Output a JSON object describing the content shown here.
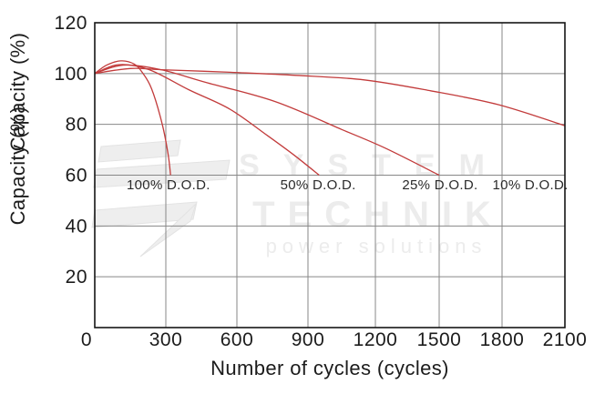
{
  "chart_data": {
    "type": "line",
    "title": "",
    "xlabel": "Number of cycles (cycles)",
    "ylabel": "Capacity (%)",
    "ylabel_rendered_twice": true,
    "xlim": [
      0,
      2100
    ],
    "ylim": [
      0,
      120
    ],
    "x_ticks": [
      0,
      300,
      600,
      900,
      1200,
      1500,
      1800,
      2100
    ],
    "y_ticks": [
      20,
      40,
      60,
      80,
      100,
      120
    ],
    "grid": true,
    "legend_position": "inline-annotations",
    "series": [
      {
        "name": "100% D.O.D.",
        "points": [
          [
            0,
            100
          ],
          [
            50,
            103.3
          ],
          [
            110,
            105
          ],
          [
            165,
            103.8
          ],
          [
            200,
            100.5
          ],
          [
            240,
            94
          ],
          [
            285,
            80
          ],
          [
            310,
            68
          ],
          [
            320,
            60
          ]
        ]
      },
      {
        "name": "50% D.O.D.",
        "points": [
          [
            0,
            100
          ],
          [
            100,
            103.5
          ],
          [
            230,
            101.5
          ],
          [
            400,
            93.5
          ],
          [
            570,
            86
          ],
          [
            730,
            75.5
          ],
          [
            840,
            68
          ],
          [
            950,
            60
          ]
        ]
      },
      {
        "name": "25% D.O.D.",
        "points": [
          [
            0,
            100
          ],
          [
            120,
            103.3
          ],
          [
            280,
            101.5
          ],
          [
            470,
            96.5
          ],
          [
            760,
            89
          ],
          [
            1050,
            78
          ],
          [
            1250,
            70.5
          ],
          [
            1500,
            60
          ]
        ]
      },
      {
        "name": "10% D.O.D.",
        "points": [
          [
            0,
            100
          ],
          [
            150,
            102
          ],
          [
            280,
            101.5
          ],
          [
            570,
            100.5
          ],
          [
            850,
            99.3
          ],
          [
            1150,
            97.5
          ],
          [
            1460,
            93.2
          ],
          [
            1780,
            87.8
          ],
          [
            2100,
            79.5
          ]
        ]
      }
    ],
    "annotations": [
      {
        "text": "100% D.O.D.",
        "x": 311,
        "y": 56.2
      },
      {
        "text": "50% D.O.D.",
        "x": 945,
        "y": 56.2
      },
      {
        "text": "25% D.O.D.",
        "x": 1504,
        "y": 56.2
      },
      {
        "text": "10% D.O.D.",
        "x": 1935,
        "y": 56.2
      }
    ]
  },
  "watermark": {
    "line1": "SYSTEM",
    "line2": "TECHNIK",
    "line3": "power solutions"
  },
  "colors": {
    "curve": "#c23b3b",
    "grid": "#878787",
    "axis": "#151515",
    "tick_text": "#1c1c1c",
    "annotation_text": "#2a2a2a",
    "watermark_fill": "#eeeeee",
    "watermark_stroke": "#e3e3e3",
    "watermark_text": "#ececec",
    "background": "#ffffff"
  }
}
